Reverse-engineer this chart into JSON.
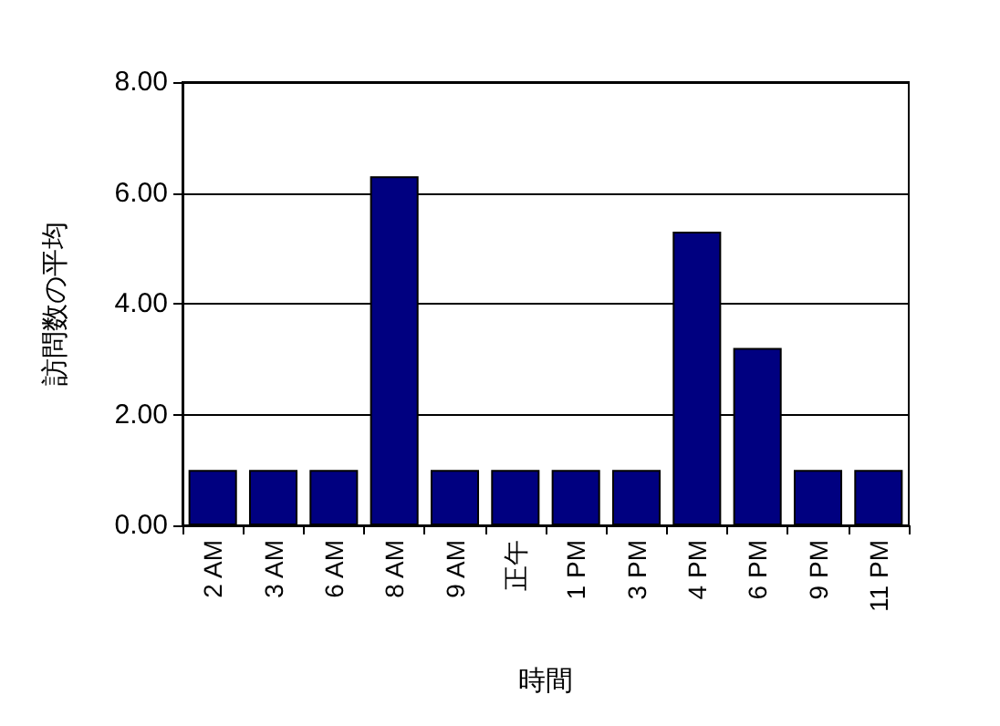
{
  "chart_data": {
    "type": "bar",
    "xlabel": "時間",
    "ylabel": "訪問数の平均",
    "categories": [
      "2 AM",
      "3 AM",
      "6 AM",
      "8 AM",
      "9 AM",
      "正午",
      "1 PM",
      "3 PM",
      "4 PM",
      "6 PM",
      "9 PM",
      "11 PM"
    ],
    "values": [
      1,
      1,
      1,
      6.3,
      1,
      1,
      1,
      1,
      5.3,
      3.2,
      1,
      1
    ],
    "color": "#000080",
    "ylim": [
      0,
      8
    ],
    "yticks": [
      {
        "value": 0,
        "label": "0.00"
      },
      {
        "value": 2,
        "label": "2.00"
      },
      {
        "value": 4,
        "label": "4.00"
      },
      {
        "value": 6,
        "label": "6.00"
      },
      {
        "value": 8,
        "label": "8.00"
      }
    ],
    "grid": "y"
  }
}
